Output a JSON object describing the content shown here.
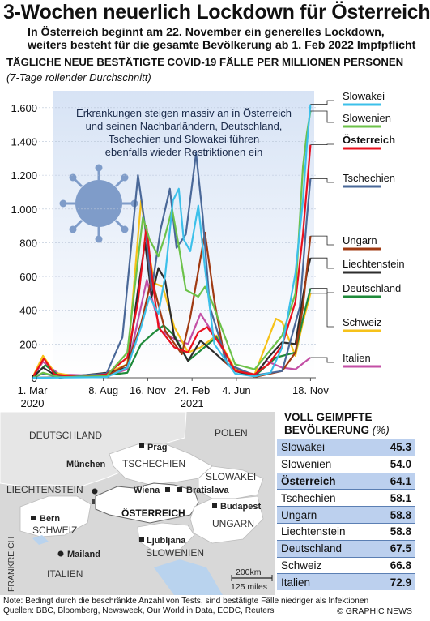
{
  "title": "3-Wochen neuerlich Lockdown für Österreich",
  "subtitle_line1": "In Österreich beginnt am 22. November ein generelles Lockdown,",
  "subtitle_line2": "weiters besteht für die gesamte Bevölkerung ab 1. Feb 2022 Impfpflicht",
  "chart_data": {
    "type": "line",
    "title": "TÄGLICHE NEUE BESTÄTIGTE COVID-19 FÄLLE PER MILLIONEN PERSONEN",
    "subtitle": "(7-Tage rollender Durchschnitt)",
    "annotation": [
      "Erkrankungen steigen massiv an in Österreich",
      "und seinen Nachbarländern,  Deutschland,",
      "Tschechien und Slowakei führen",
      "ebenfalls wieder Restriktionen ein"
    ],
    "ylim": [
      0,
      1700
    ],
    "yticks": [
      0,
      200,
      400,
      600,
      800,
      1000,
      1200,
      1400,
      1600
    ],
    "ytick_labels": [
      "0",
      "200",
      "400",
      "600",
      "800",
      "1.000",
      "1.200",
      "1.400",
      "1.600"
    ],
    "xlim": [
      "2020-03-01",
      "2021-11-30"
    ],
    "xticks": [
      {
        "date": "2020-03-01",
        "label": "1. Mar",
        "year": "2020"
      },
      {
        "date": "2020-08-08",
        "label": "8. Aug",
        "year": ""
      },
      {
        "date": "2020-11-16",
        "label": "16. Nov",
        "year": ""
      },
      {
        "date": "2021-02-24",
        "label": "24. Feb",
        "year": "2021"
      },
      {
        "date": "2021-06-04",
        "label": "4. Jun",
        "year": ""
      },
      {
        "date": "2021-11-18",
        "label": "18. Nov",
        "year": ""
      }
    ],
    "grid": true,
    "legend": "right",
    "series": [
      {
        "name": "Slowakei",
        "color": "#3cc0ea",
        "points": [
          [
            "2020-03-01",
            0
          ],
          [
            "2020-08-15",
            4
          ],
          [
            "2020-10-01",
            60
          ],
          [
            "2020-11-01",
            300
          ],
          [
            "2020-11-20",
            480
          ],
          [
            "2020-12-10",
            380
          ],
          [
            "2020-12-25",
            600
          ],
          [
            "2021-01-12",
            1050
          ],
          [
            "2021-01-25",
            1120
          ],
          [
            "2021-02-05",
            820
          ],
          [
            "2021-02-20",
            750
          ],
          [
            "2021-03-10",
            1020
          ],
          [
            "2021-03-25",
            650
          ],
          [
            "2021-04-15",
            200
          ],
          [
            "2021-06-01",
            25
          ],
          [
            "2021-07-15",
            8
          ],
          [
            "2021-08-20",
            30
          ],
          [
            "2021-09-15",
            180
          ],
          [
            "2021-10-15",
            620
          ],
          [
            "2021-11-01",
            1050
          ],
          [
            "2021-11-10",
            1380
          ],
          [
            "2021-11-18",
            1620
          ]
        ]
      },
      {
        "name": "Slowenien",
        "color": "#6cc24a",
        "points": [
          [
            "2020-03-01",
            0
          ],
          [
            "2020-03-25",
            30
          ],
          [
            "2020-05-01",
            4
          ],
          [
            "2020-08-15",
            10
          ],
          [
            "2020-10-01",
            150
          ],
          [
            "2020-10-25",
            700
          ],
          [
            "2020-11-05",
            950
          ],
          [
            "2020-11-20",
            820
          ],
          [
            "2020-12-10",
            720
          ],
          [
            "2020-12-25",
            840
          ],
          [
            "2021-01-10",
            1000
          ],
          [
            "2021-01-25",
            780
          ],
          [
            "2021-02-10",
            520
          ],
          [
            "2021-03-10",
            480
          ],
          [
            "2021-03-25",
            540
          ],
          [
            "2021-04-10",
            450
          ],
          [
            "2021-05-01",
            300
          ],
          [
            "2021-06-01",
            80
          ],
          [
            "2021-07-15",
            50
          ],
          [
            "2021-08-15",
            150
          ],
          [
            "2021-09-15",
            250
          ],
          [
            "2021-10-15",
            500
          ],
          [
            "2021-11-01",
            1250
          ],
          [
            "2021-11-10",
            1450
          ],
          [
            "2021-11-18",
            1580
          ]
        ]
      },
      {
        "name": "Österreich",
        "color": "#e8101d",
        "points": [
          [
            "2020-03-01",
            0
          ],
          [
            "2020-03-27",
            115
          ],
          [
            "2020-04-20",
            20
          ],
          [
            "2020-06-15",
            5
          ],
          [
            "2020-08-15",
            20
          ],
          [
            "2020-10-01",
            120
          ],
          [
            "2020-10-25",
            450
          ],
          [
            "2020-11-13",
            900
          ],
          [
            "2020-11-25",
            620
          ],
          [
            "2020-12-10",
            300
          ],
          [
            "2020-12-25",
            250
          ],
          [
            "2021-01-15",
            180
          ],
          [
            "2021-02-15",
            150
          ],
          [
            "2021-03-10",
            270
          ],
          [
            "2021-03-30",
            300
          ],
          [
            "2021-05-01",
            190
          ],
          [
            "2021-06-01",
            40
          ],
          [
            "2021-07-15",
            20
          ],
          [
            "2021-08-15",
            80
          ],
          [
            "2021-09-15",
            190
          ],
          [
            "2021-10-15",
            450
          ],
          [
            "2021-11-01",
            850
          ],
          [
            "2021-11-10",
            1130
          ],
          [
            "2021-11-18",
            1380
          ]
        ]
      },
      {
        "name": "Tschechien",
        "color": "#4a6898",
        "points": [
          [
            "2020-03-01",
            0
          ],
          [
            "2020-03-25",
            25
          ],
          [
            "2020-05-01",
            5
          ],
          [
            "2020-08-15",
            25
          ],
          [
            "2020-09-20",
            240
          ],
          [
            "2020-10-25",
            1200
          ],
          [
            "2020-11-10",
            900
          ],
          [
            "2020-11-25",
            520
          ],
          [
            "2020-12-15",
            880
          ],
          [
            "2021-01-05",
            1120
          ],
          [
            "2021-01-20",
            770
          ],
          [
            "2021-02-10",
            850
          ],
          [
            "2021-03-05",
            1330
          ],
          [
            "2021-03-20",
            960
          ],
          [
            "2021-04-05",
            420
          ],
          [
            "2021-05-15",
            80
          ],
          [
            "2021-07-15",
            15
          ],
          [
            "2021-09-15",
            40
          ],
          [
            "2021-10-25",
            420
          ],
          [
            "2021-11-10",
            950
          ],
          [
            "2021-11-18",
            1180
          ]
        ]
      },
      {
        "name": "Ungarn",
        "color": "#a03a12",
        "points": [
          [
            "2020-03-01",
            0
          ],
          [
            "2020-05-01",
            4
          ],
          [
            "2020-08-15",
            10
          ],
          [
            "2020-10-01",
            80
          ],
          [
            "2020-11-01",
            320
          ],
          [
            "2020-11-25",
            590
          ],
          [
            "2020-12-25",
            280
          ],
          [
            "2021-02-01",
            140
          ],
          [
            "2021-02-20",
            360
          ],
          [
            "2021-03-25",
            860
          ],
          [
            "2021-04-15",
            460
          ],
          [
            "2021-05-10",
            90
          ],
          [
            "2021-07-15",
            5
          ],
          [
            "2021-09-15",
            40
          ],
          [
            "2021-10-15",
            150
          ],
          [
            "2021-11-01",
            420
          ],
          [
            "2021-11-18",
            840
          ]
        ]
      },
      {
        "name": "Liechtenstein",
        "color": "#2c2c2c",
        "points": [
          [
            "2020-03-01",
            0
          ],
          [
            "2020-03-25",
            60
          ],
          [
            "2020-05-01",
            0
          ],
          [
            "2020-08-15",
            30
          ],
          [
            "2020-10-01",
            60
          ],
          [
            "2020-10-25",
            520
          ],
          [
            "2020-11-10",
            800
          ],
          [
            "2020-11-25",
            480
          ],
          [
            "2020-12-10",
            650
          ],
          [
            "2020-12-25",
            580
          ],
          [
            "2021-01-15",
            240
          ],
          [
            "2021-02-15",
            100
          ],
          [
            "2021-03-15",
            220
          ],
          [
            "2021-04-15",
            150
          ],
          [
            "2021-06-01",
            40
          ],
          [
            "2021-07-15",
            10
          ],
          [
            "2021-08-15",
            120
          ],
          [
            "2021-09-15",
            210
          ],
          [
            "2021-10-15",
            200
          ],
          [
            "2021-11-01",
            480
          ],
          [
            "2021-11-10",
            620
          ],
          [
            "2021-11-18",
            710
          ]
        ]
      },
      {
        "name": "Deutschland",
        "color": "#1f8a3a",
        "points": [
          [
            "2020-03-01",
            0
          ],
          [
            "2020-03-30",
            75
          ],
          [
            "2020-05-01",
            10
          ],
          [
            "2020-08-15",
            15
          ],
          [
            "2020-10-01",
            30
          ],
          [
            "2020-11-01",
            200
          ],
          [
            "2020-12-01",
            270
          ],
          [
            "2020-12-22",
            310
          ],
          [
            "2021-01-15",
            250
          ],
          [
            "2021-02-15",
            100
          ],
          [
            "2021-04-20",
            240
          ],
          [
            "2021-06-01",
            40
          ],
          [
            "2021-07-15",
            10
          ],
          [
            "2021-09-01",
            120
          ],
          [
            "2021-10-15",
            150
          ],
          [
            "2021-11-01",
            350
          ],
          [
            "2021-11-18",
            530
          ]
        ]
      },
      {
        "name": "Schweiz",
        "color": "#f6c21a",
        "points": [
          [
            "2020-03-01",
            0
          ],
          [
            "2020-03-25",
            130
          ],
          [
            "2020-04-20",
            30
          ],
          [
            "2020-06-15",
            5
          ],
          [
            "2020-08-15",
            25
          ],
          [
            "2020-10-01",
            80
          ],
          [
            "2020-11-01",
            1050
          ],
          [
            "2020-11-15",
            800
          ],
          [
            "2020-12-01",
            560
          ],
          [
            "2020-12-20",
            540
          ],
          [
            "2021-01-15",
            300
          ],
          [
            "2021-02-15",
            150
          ],
          [
            "2021-03-15",
            180
          ],
          [
            "2021-04-20",
            250
          ],
          [
            "2021-06-01",
            50
          ],
          [
            "2021-07-15",
            20
          ],
          [
            "2021-09-01",
            350
          ],
          [
            "2021-09-15",
            330
          ],
          [
            "2021-10-15",
            130
          ],
          [
            "2021-11-01",
            330
          ],
          [
            "2021-11-18",
            500
          ]
        ]
      },
      {
        "name": "Italien",
        "color": "#c34fa5",
        "points": [
          [
            "2020-03-01",
            0
          ],
          [
            "2020-03-25",
            95
          ],
          [
            "2020-05-01",
            20
          ],
          [
            "2020-08-15",
            10
          ],
          [
            "2020-10-01",
            50
          ],
          [
            "2020-11-14",
            580
          ],
          [
            "2020-12-15",
            280
          ],
          [
            "2021-01-15",
            230
          ],
          [
            "2021-02-15",
            200
          ],
          [
            "2021-03-15",
            380
          ],
          [
            "2021-04-15",
            250
          ],
          [
            "2021-06-01",
            50
          ],
          [
            "2021-07-15",
            20
          ],
          [
            "2021-08-10",
            100
          ],
          [
            "2021-09-15",
            60
          ],
          [
            "2021-10-15",
            50
          ],
          [
            "2021-11-18",
            120
          ]
        ]
      }
    ]
  },
  "map": {
    "labels": {
      "deutschland": "DEUTSCHLAND",
      "polen": "POLEN",
      "tschechien": "TSCHECHIEN",
      "slowakei": "SLOWAKEI",
      "liechtenstein": "LIECHTENSTEIN",
      "schweiz": "SCHWEIZ",
      "oesterreich": "ÖSTERREICH",
      "ungarn": "UNGARN",
      "slowenien": "SLOWENIEN",
      "italien": "ITALIEN",
      "frankreich": "FRANKREICH"
    },
    "cities": {
      "prag": "Prag",
      "muenchen": "München",
      "wien": "Wiena",
      "bratislava": "Bratislava",
      "bern": "Bern",
      "budapest": "Budapest",
      "ljubljana": "Ljubljana",
      "mailand": "Mailand"
    },
    "scale_km": "200km",
    "scale_miles": "125 miles"
  },
  "vaccination": {
    "title_line1": "VOLL GEIMPFTE",
    "title_line2": "BEVÖLKERUNG",
    "unit": "(%)",
    "rows": [
      {
        "country": "Slowakei",
        "value": "45.3"
      },
      {
        "country": "Slowenien",
        "value": "54.0"
      },
      {
        "country": "Österreich",
        "value": "64.1"
      },
      {
        "country": "Tschechien",
        "value": "58.1"
      },
      {
        "country": "Ungarn",
        "value": "58.8"
      },
      {
        "country": "Liechtenstein",
        "value": "58.8"
      },
      {
        "country": "Deutschland",
        "value": "67.5"
      },
      {
        "country": "Schweiz",
        "value": "66.8"
      },
      {
        "country": "Italien",
        "value": "72.9"
      }
    ]
  },
  "footnote_line1": "Note: Bedingt durch die beschränkte Anzahl von Tests, sind bestätigte Fälle niedriger als Infektionen",
  "footnote_line2": "Quellen: BBC, Bloomberg, Newsweek, Our World in Data, ECDC, Reuters",
  "copyright": "© GRAPHIC NEWS"
}
